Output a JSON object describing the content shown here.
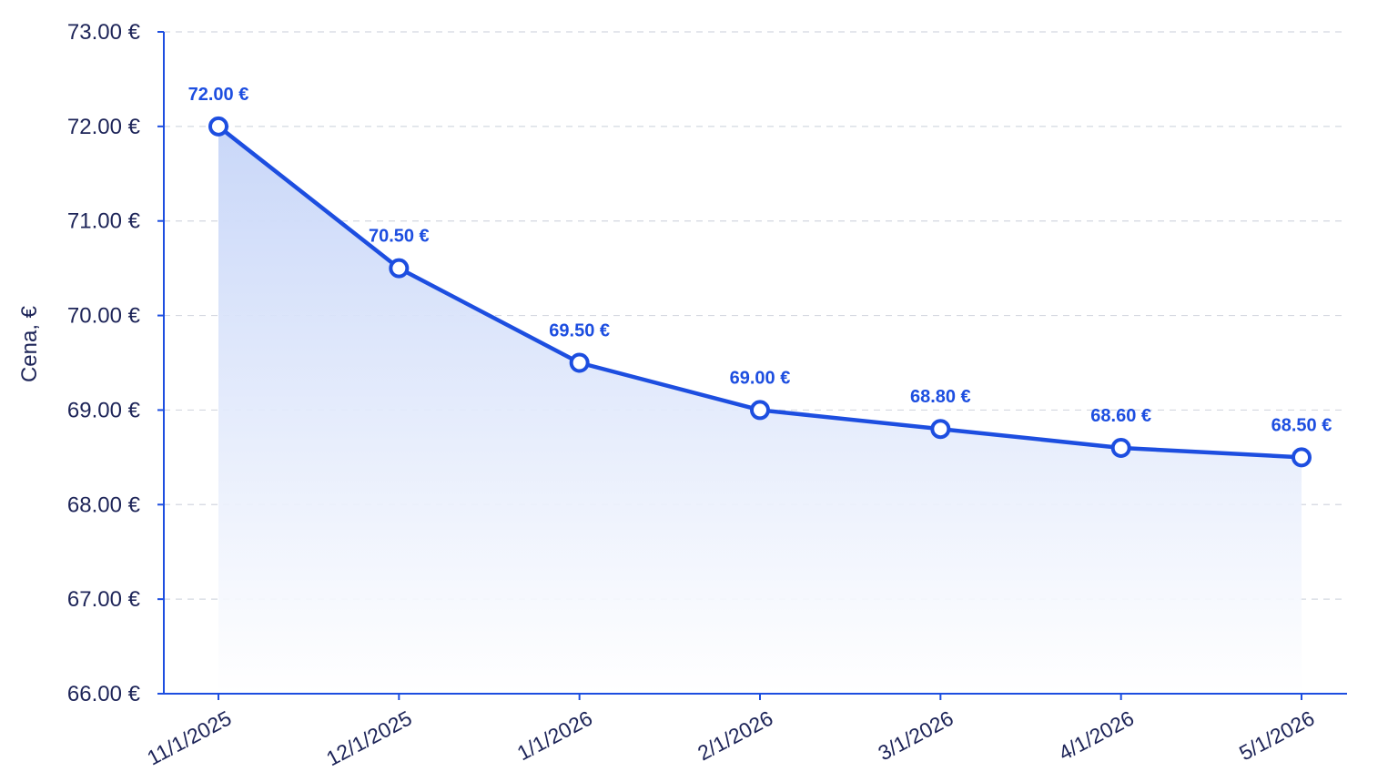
{
  "chart_data": {
    "type": "area",
    "title": "",
    "xlabel": "",
    "ylabel": "Cena, €",
    "categories": [
      "11/1/2025",
      "12/1/2025",
      "1/1/2026",
      "2/1/2026",
      "3/1/2026",
      "4/1/2026",
      "5/1/2026"
    ],
    "series": [
      {
        "values": [
          72.0,
          70.5,
          69.5,
          69.0,
          68.8,
          68.6,
          68.5
        ],
        "data_labels": [
          "72.00 €",
          "70.50 €",
          "69.50 €",
          "69.00 €",
          "68.80 €",
          "68.60 €",
          "68.50 €"
        ]
      }
    ],
    "ylim": [
      66,
      73
    ],
    "yticks": [
      66,
      67,
      68,
      69,
      70,
      71,
      72,
      73
    ],
    "ytick_labels": [
      "66.00 €",
      "67.00 €",
      "68.00 €",
      "69.00 €",
      "70.00 €",
      "71.00 €",
      "72.00 €",
      "73.00 €"
    ],
    "grid": "horizontal dashed",
    "legend": "none",
    "colors": {
      "line": "#1d4ee0",
      "fill_top": "#c9d7f8",
      "axis_text": "#1d2458",
      "grid": "#d4d8e0"
    }
  }
}
